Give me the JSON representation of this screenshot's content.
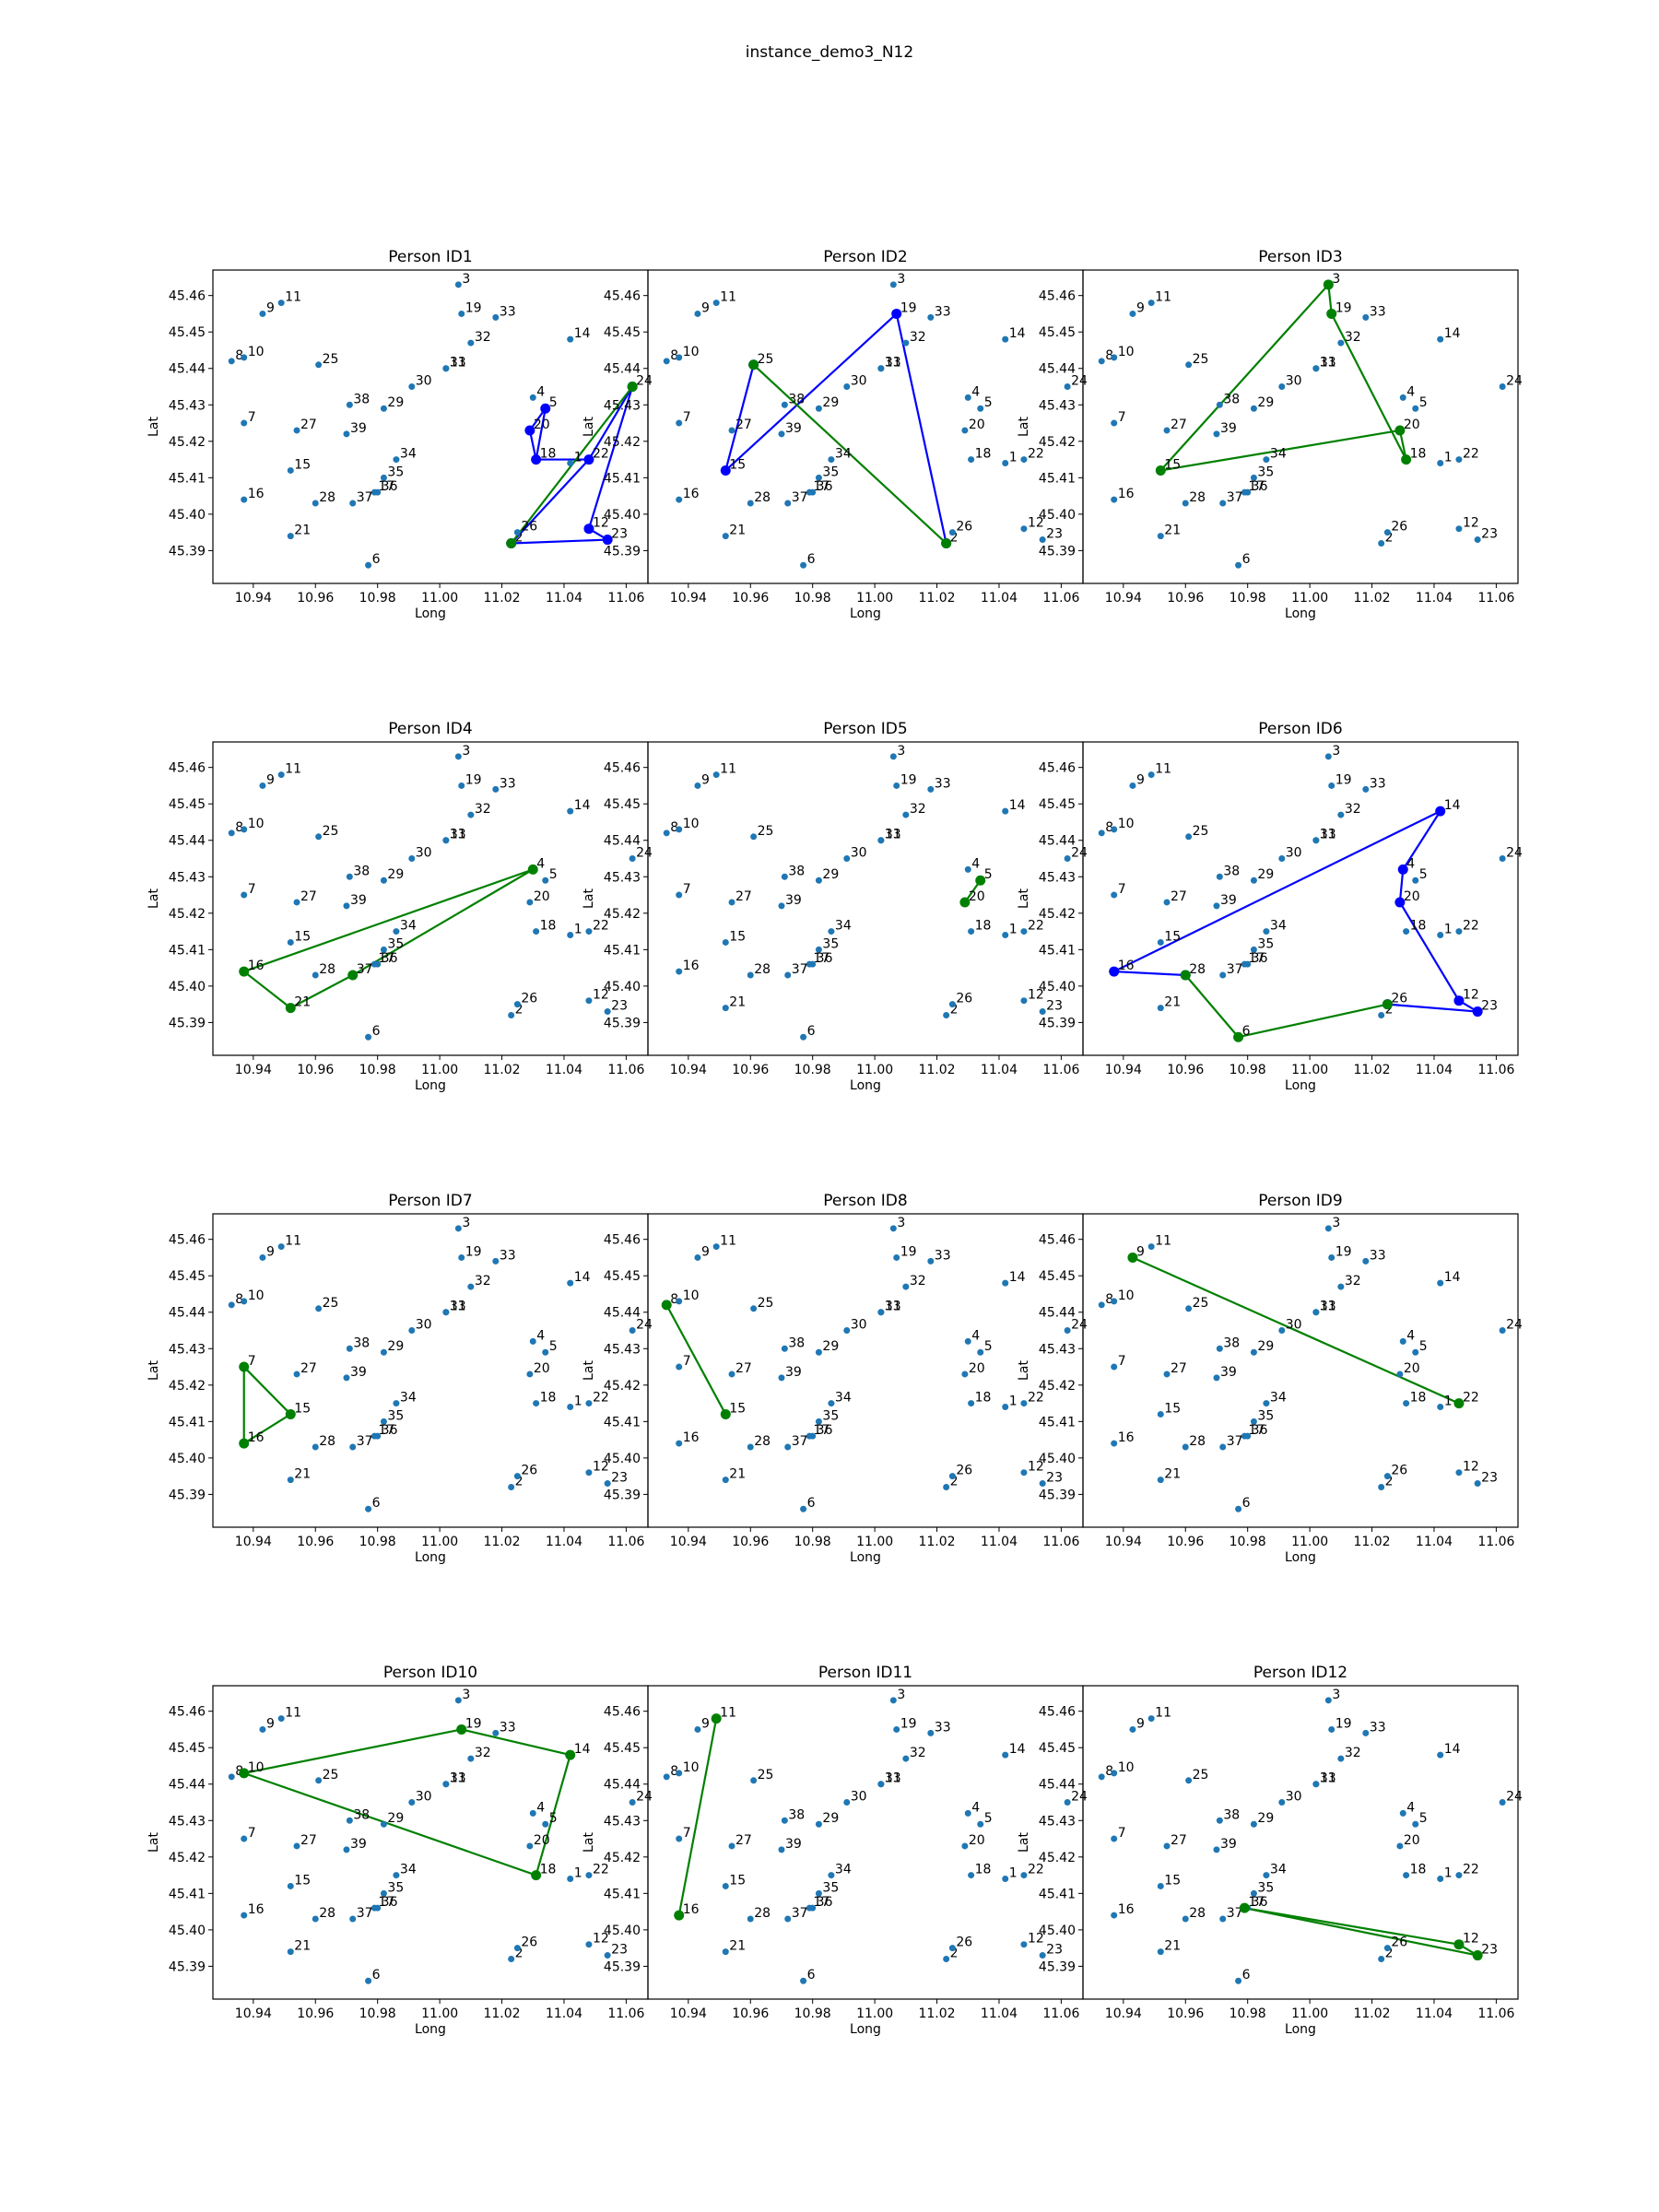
{
  "figure": {
    "title": "instance_demo3_N12"
  },
  "colors": {
    "node": "#1f77b4",
    "route_blue": "#0000ff",
    "route_green": "#008000",
    "axes_edge": "#000000",
    "background": "#ffffff"
  },
  "chart_data": {
    "type": "scatter",
    "description_of_panels": "12 subplots, each showing all location nodes and a person's route",
    "xlabel": "Long",
    "ylabel": "Lat",
    "xlim": [
      10.927,
      11.067
    ],
    "ylim": [
      45.381,
      45.467
    ],
    "xticks": [
      10.94,
      10.96,
      10.98,
      11.0,
      11.02,
      11.04,
      11.06
    ],
    "xtick_labels": [
      "10.94",
      "10.96",
      "10.98",
      "11.00",
      "11.02",
      "11.04",
      "11.06"
    ],
    "yticks": [
      45.39,
      45.4,
      45.41,
      45.42,
      45.43,
      45.44,
      45.45,
      45.46
    ],
    "ytick_labels": [
      "45.39",
      "45.40",
      "45.41",
      "45.42",
      "45.43",
      "45.44",
      "45.45",
      "45.46"
    ],
    "nodes": [
      {
        "id": "1",
        "x": 11.042,
        "y": 45.414
      },
      {
        "id": "2",
        "x": 11.023,
        "y": 45.392
      },
      {
        "id": "3",
        "x": 11.006,
        "y": 45.463
      },
      {
        "id": "4",
        "x": 11.03,
        "y": 45.432
      },
      {
        "id": "5",
        "x": 11.034,
        "y": 45.429
      },
      {
        "id": "6",
        "x": 10.977,
        "y": 45.386
      },
      {
        "id": "7",
        "x": 10.937,
        "y": 45.425
      },
      {
        "id": "8",
        "x": 10.933,
        "y": 45.442
      },
      {
        "id": "9",
        "x": 10.943,
        "y": 45.455
      },
      {
        "id": "10",
        "x": 10.937,
        "y": 45.443
      },
      {
        "id": "11",
        "x": 10.949,
        "y": 45.458
      },
      {
        "id": "12",
        "x": 11.048,
        "y": 45.396
      },
      {
        "id": "13",
        "x": 11.002,
        "y": 45.44
      },
      {
        "id": "14",
        "x": 11.042,
        "y": 45.448
      },
      {
        "id": "15",
        "x": 10.952,
        "y": 45.412
      },
      {
        "id": "16",
        "x": 10.937,
        "y": 45.404
      },
      {
        "id": "17",
        "x": 10.979,
        "y": 45.406
      },
      {
        "id": "18",
        "x": 11.031,
        "y": 45.415
      },
      {
        "id": "19",
        "x": 11.007,
        "y": 45.455
      },
      {
        "id": "20",
        "x": 11.029,
        "y": 45.423
      },
      {
        "id": "21",
        "x": 10.952,
        "y": 45.394
      },
      {
        "id": "22",
        "x": 11.048,
        "y": 45.415
      },
      {
        "id": "23",
        "x": 11.054,
        "y": 45.393
      },
      {
        "id": "24",
        "x": 11.062,
        "y": 45.435
      },
      {
        "id": "25",
        "x": 10.961,
        "y": 45.441
      },
      {
        "id": "26",
        "x": 11.025,
        "y": 45.395
      },
      {
        "id": "27",
        "x": 10.954,
        "y": 45.423
      },
      {
        "id": "28",
        "x": 10.96,
        "y": 45.403
      },
      {
        "id": "29",
        "x": 10.982,
        "y": 45.429
      },
      {
        "id": "30",
        "x": 10.991,
        "y": 45.435
      },
      {
        "id": "31",
        "x": 11.002,
        "y": 45.44
      },
      {
        "id": "32",
        "x": 11.01,
        "y": 45.447
      },
      {
        "id": "33",
        "x": 11.018,
        "y": 45.454
      },
      {
        "id": "34",
        "x": 10.986,
        "y": 45.415
      },
      {
        "id": "35",
        "x": 10.982,
        "y": 45.41
      },
      {
        "id": "36",
        "x": 10.98,
        "y": 45.406
      },
      {
        "id": "37",
        "x": 10.972,
        "y": 45.403
      },
      {
        "id": "38",
        "x": 10.971,
        "y": 45.43
      },
      {
        "id": "39",
        "x": 10.97,
        "y": 45.422
      }
    ],
    "panels": [
      {
        "title": "Person ID1",
        "blue": [
          [
            "24",
            "12"
          ],
          [
            "12",
            "23"
          ],
          [
            "23",
            "2"
          ],
          [
            "2",
            "22"
          ],
          [
            "22",
            "18"
          ],
          [
            "18",
            "20"
          ],
          [
            "20",
            "5"
          ],
          [
            "5",
            "18"
          ],
          [
            "22",
            "24"
          ]
        ],
        "green": [
          [
            "2",
            "24"
          ]
        ]
      },
      {
        "title": "Person ID2",
        "blue": [
          [
            "15",
            "25"
          ],
          [
            "15",
            "19"
          ],
          [
            "19",
            "2"
          ]
        ],
        "green": [
          [
            "25",
            "2"
          ]
        ]
      },
      {
        "title": "Person ID3",
        "blue": [],
        "green": [
          [
            "15",
            "3"
          ],
          [
            "3",
            "19"
          ],
          [
            "19",
            "18"
          ],
          [
            "18",
            "20"
          ],
          [
            "20",
            "15"
          ]
        ]
      },
      {
        "title": "Person ID4",
        "blue": [],
        "green": [
          [
            "4",
            "16"
          ],
          [
            "16",
            "21"
          ],
          [
            "21",
            "37"
          ],
          [
            "37",
            "4"
          ]
        ]
      },
      {
        "title": "Person ID5",
        "blue": [],
        "green": [
          [
            "20",
            "5"
          ]
        ]
      },
      {
        "title": "Person ID6",
        "blue": [
          [
            "16",
            "28"
          ],
          [
            "16",
            "14"
          ],
          [
            "14",
            "4"
          ],
          [
            "4",
            "20"
          ],
          [
            "20",
            "12"
          ],
          [
            "12",
            "23"
          ],
          [
            "23",
            "26"
          ]
        ],
        "green": [
          [
            "28",
            "6"
          ],
          [
            "6",
            "26"
          ]
        ]
      },
      {
        "title": "Person ID7",
        "blue": [],
        "green": [
          [
            "7",
            "15"
          ],
          [
            "15",
            "16"
          ],
          [
            "16",
            "7"
          ]
        ]
      },
      {
        "title": "Person ID8",
        "blue": [],
        "green": [
          [
            "8",
            "15"
          ]
        ]
      },
      {
        "title": "Person ID9",
        "blue": [],
        "green": [
          [
            "9",
            "22"
          ]
        ]
      },
      {
        "title": "Person ID10",
        "blue": [],
        "green": [
          [
            "10",
            "19"
          ],
          [
            "19",
            "14"
          ],
          [
            "14",
            "18"
          ],
          [
            "18",
            "10"
          ]
        ]
      },
      {
        "title": "Person ID11",
        "blue": [],
        "green": [
          [
            "11",
            "16"
          ]
        ]
      },
      {
        "title": "Person ID12",
        "blue": [],
        "green": [
          [
            "17",
            "23"
          ],
          [
            "23",
            "12"
          ],
          [
            "12",
            "17"
          ]
        ]
      }
    ]
  }
}
